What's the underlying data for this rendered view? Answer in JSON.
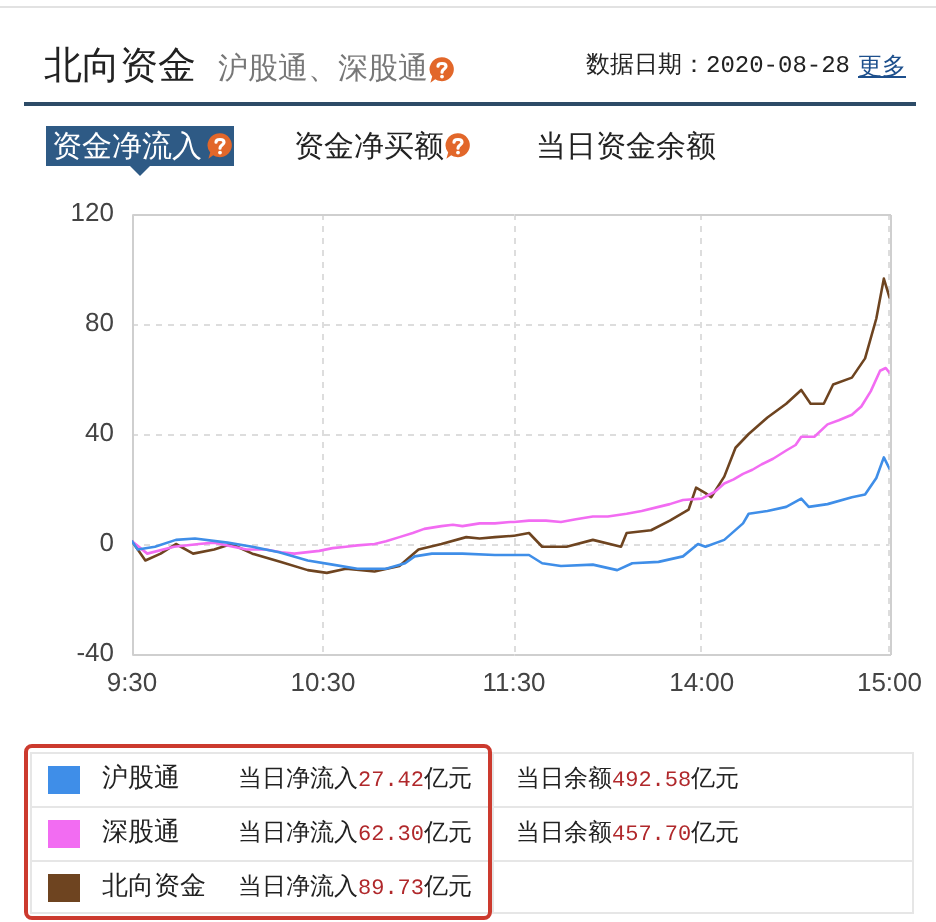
{
  "chart_data": [
    {
      "type": "line",
      "title": "北向资金",
      "subtitle": "沪股通、深股通",
      "annotations": [
        "数据日期：2020-08-28",
        "更多",
        "资金净流入",
        "资金净买额",
        "当日资金余额",
        "当日净流入27.42亿元",
        "当日余额492.58亿元",
        "当日净流入62.30亿元",
        "当日余额457.70亿元",
        "当日净流入89.73亿元"
      ],
      "xlim": [
        9.5,
        11.5
      ],
      "xticks": [
        {
          "value": 9.5,
          "label": "9:30"
        },
        {
          "value": 10.5,
          "label": "10:30"
        },
        {
          "value": 11.5,
          "label": "11:30"
        }
      ],
      "ylim": [
        -40,
        120
      ],
      "yticks": [
        -40,
        0,
        40,
        80,
        120
      ],
      "grid": true,
      "legend": "bottom",
      "marker": "none",
      "series": [
        {
          "name": "沪股通",
          "color": "#3f8ee8",
          "x": [
            9.5,
            9.53,
            9.62,
            9.73,
            9.83,
            10.0,
            10.13,
            10.27,
            10.42,
            10.55,
            10.68,
            10.83,
            10.93,
            10.98,
            11.07,
            11.23,
            11.4,
            11.5
          ],
          "values": [
            1,
            -2,
            -1,
            1.5,
            2,
            0.5,
            -1,
            -3,
            -6,
            -7.5,
            -9,
            -9,
            -7,
            -4.5,
            -3.5,
            -3.5,
            -4,
            -4
          ]
        },
        {
          "name": "深股通",
          "color": "#f26cf2",
          "x": [
            9.5,
            9.58,
            9.72,
            9.85,
            9.93,
            10.03,
            10.1,
            10.2,
            10.28,
            10.35,
            10.48,
            10.55,
            10.62,
            10.68,
            10.77,
            10.83,
            10.9,
            10.97,
            11.03,
            11.12,
            11.18,
            11.23,
            11.32,
            11.4,
            11.48,
            11.5
          ],
          "values": [
            1,
            -3.5,
            -1,
            0,
            0.5,
            -1,
            -2,
            -2,
            -3,
            -3.5,
            -2.5,
            -1.5,
            -1,
            -0.5,
            0,
            1,
            2.5,
            4,
            5.5,
            6.5,
            7,
            6.5,
            7.5,
            7.5,
            8,
            8
          ]
        },
        {
          "name": "北向资金",
          "color": "#6e4420",
          "x": [
            9.5,
            9.57,
            9.65,
            9.73,
            9.82,
            9.93,
            10.02,
            10.13,
            10.28,
            10.42,
            10.52,
            10.62,
            10.77,
            10.9,
            11.0,
            11.12,
            11.25,
            11.32,
            11.4,
            11.5
          ],
          "values": [
            1,
            -6,
            -3.5,
            0,
            -3.5,
            -2,
            0,
            -3.5,
            -6.5,
            -9.5,
            -10.5,
            -9,
            -10,
            -8,
            -2,
            0,
            2.5,
            2,
            2.5,
            3
          ]
        }
      ]
    },
    {
      "type": "line",
      "xlim": [
        13,
        15
      ],
      "xticks": [
        {
          "value": 14,
          "label": "14:00"
        },
        {
          "value": 15,
          "label": "15:00"
        }
      ],
      "ylim": [
        -40,
        120
      ],
      "yticks": [
        -40,
        0,
        40,
        80,
        120
      ],
      "grid": true,
      "tick_labels": "x",
      "marker": "none",
      "series": [
        {
          "color": "#3f8ee8",
          "x": [
            13.0,
            13.08,
            13.15,
            13.25,
            13.42,
            13.55,
            13.63,
            13.77,
            13.9,
            13.98,
            14.02,
            14.12,
            14.22,
            14.25,
            14.35,
            14.45,
            14.53,
            14.57,
            14.67,
            14.8,
            14.87,
            14.93,
            14.97,
            15
          ],
          "values": [
            -4,
            -4,
            -7,
            -8,
            -7.5,
            -9.5,
            -7,
            -6.5,
            -4.5,
            0,
            -1,
            1.5,
            7.5,
            11,
            12,
            13.5,
            16.5,
            13.5,
            14.5,
            17,
            18,
            24,
            31.5,
            27.4
          ]
        },
        {
          "color": "#f26cf2",
          "x": [
            13.0,
            13.08,
            13.17,
            13.25,
            13.33,
            13.42,
            13.5,
            13.6,
            13.68,
            13.77,
            13.83,
            13.9,
            14.0,
            14.07,
            14.12,
            14.17,
            14.22,
            14.27,
            14.32,
            14.38,
            14.45,
            14.5,
            14.53,
            14.6,
            14.67,
            14.73,
            14.8,
            14.85,
            14.9,
            14.95,
            14.98,
            15
          ],
          "values": [
            8,
            8.5,
            8.5,
            8,
            9,
            10,
            10,
            11,
            12,
            13.5,
            14.5,
            16,
            16.5,
            19,
            22,
            23.5,
            25.5,
            27,
            29,
            31,
            34,
            36,
            39,
            39,
            43.5,
            45,
            47,
            50,
            55.5,
            63,
            64,
            62.3
          ]
        },
        {
          "color": "#6e4420",
          "x": [
            13.0,
            13.08,
            13.15,
            13.28,
            13.42,
            13.57,
            13.6,
            13.73,
            13.83,
            13.93,
            13.97,
            14.02,
            14.05,
            14.12,
            14.18,
            14.25,
            14.35,
            14.45,
            14.53,
            14.58,
            14.65,
            14.7,
            14.8,
            14.87,
            14.93,
            14.97,
            15
          ],
          "values": [
            3,
            4,
            -1,
            -1,
            1.5,
            -1,
            4,
            5,
            8.5,
            12.5,
            20.5,
            18.5,
            17,
            24.5,
            35,
            40,
            46,
            51,
            56,
            51,
            51,
            58,
            60.5,
            67.5,
            82,
            96.5,
            89.7
          ]
        }
      ]
    }
  ]
}
